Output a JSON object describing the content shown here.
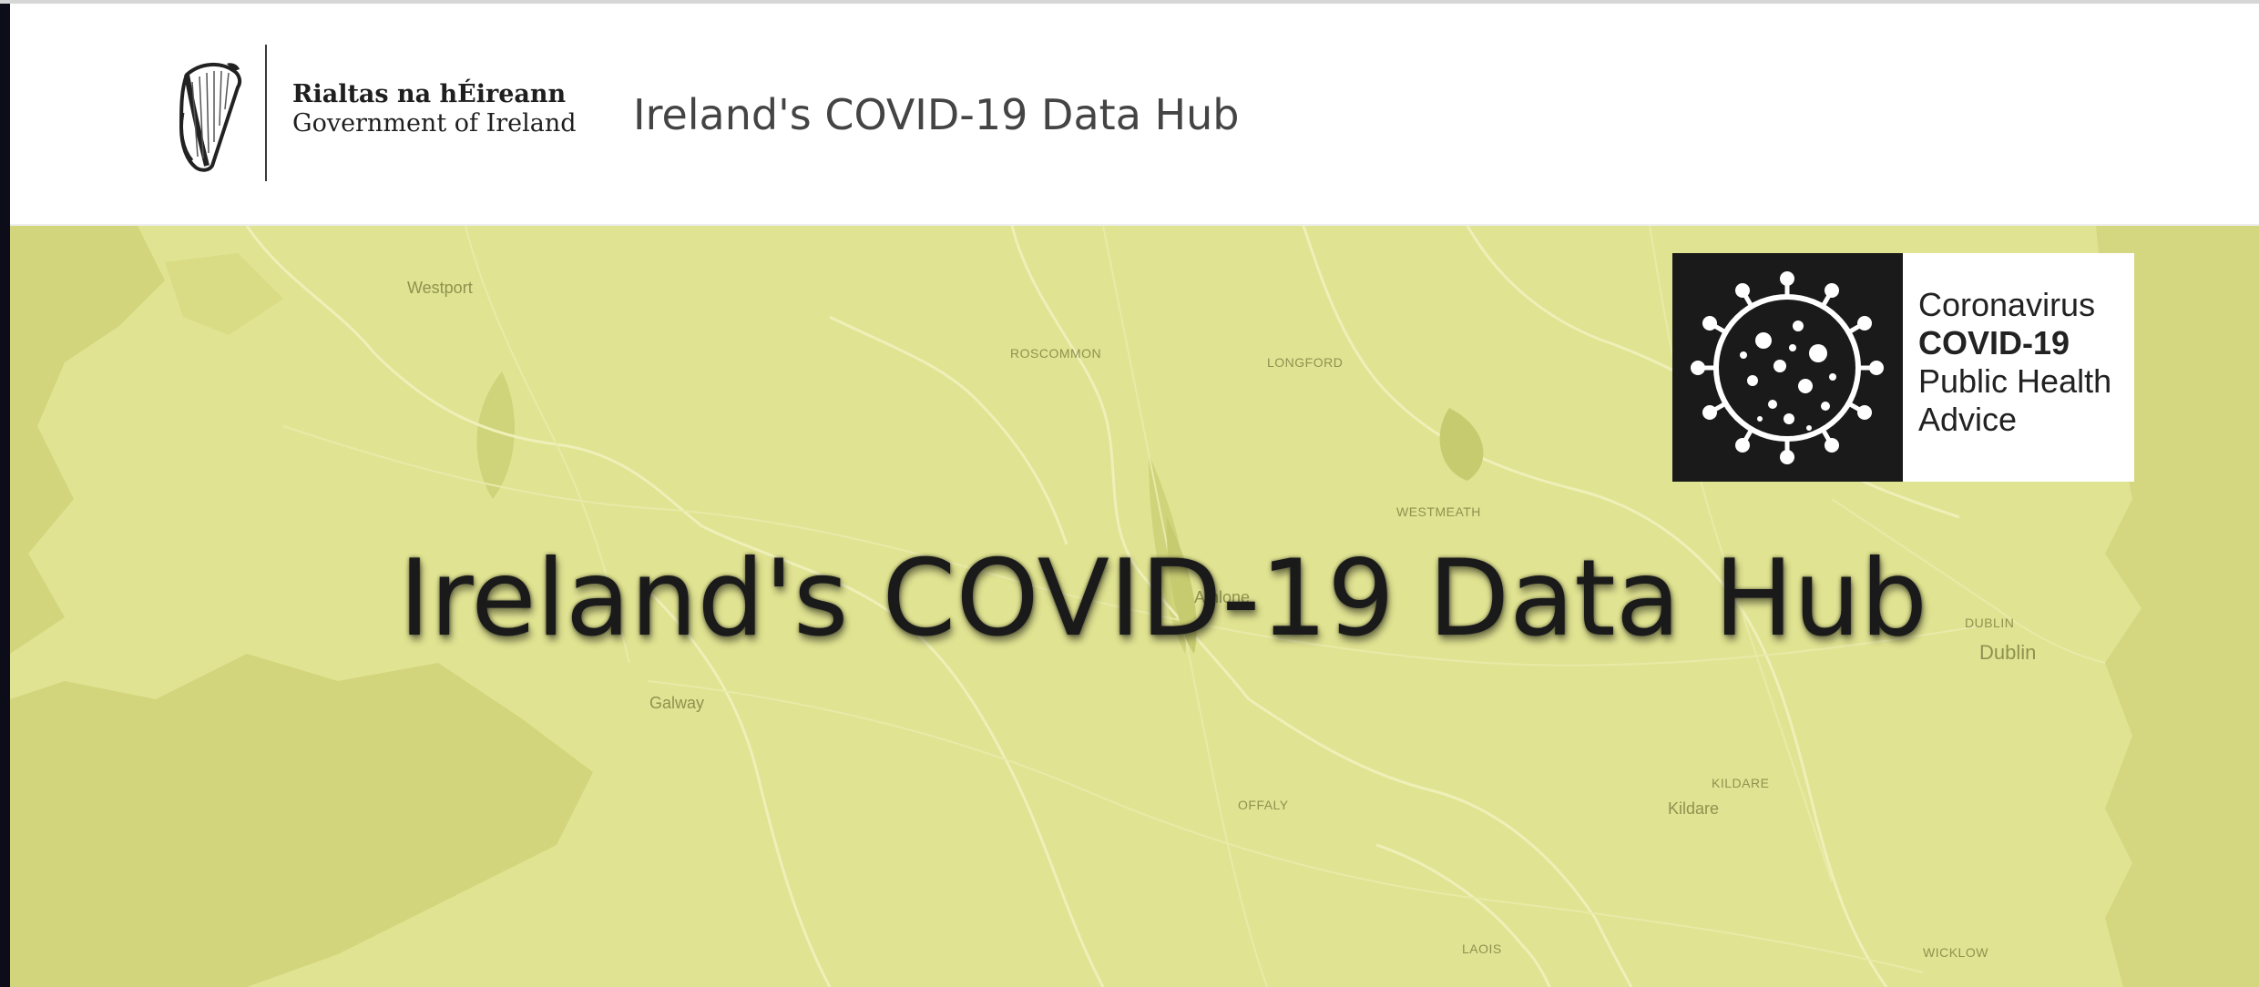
{
  "header": {
    "brand_line1": "Rialtas na hÉireann",
    "brand_line2": "Government of Ireland",
    "title": "Ireland's COVID-19 Data Hub"
  },
  "banner": {
    "title": "Ireland's COVID-19 Data Hub",
    "background_color": "#e0e391",
    "map_labels": {
      "westport": "Westport",
      "roscommon": "ROSCOMMON",
      "longford": "LONGFORD",
      "westmeath": "WESTMEATH",
      "athlone": "Athlone",
      "galway": "Galway",
      "offaly": "OFFALY",
      "kildare_county": "KILDARE",
      "kildare_town": "Kildare",
      "dublin_county": "DUBLIN",
      "dublin_city": "Dublin",
      "laois": "LAOIS",
      "wicklow": "WICKLOW"
    }
  },
  "covid_card": {
    "line1": "Coronavirus",
    "line2": "COVID-19",
    "line3": "Public Health",
    "line4": "Advice",
    "icon": "virus-icon"
  },
  "icons": {
    "harp": "harp-emblem-icon",
    "virus": "virus-icon"
  }
}
